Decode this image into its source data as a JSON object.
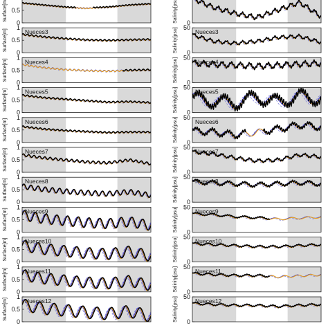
{
  "figure": {
    "left_ylabel": "Surface[m]",
    "right_ylabel": "Salinity[psu]",
    "colors": {
      "observed": "#000000",
      "model_a": "#e8a020",
      "model_b": "#2a2ad0",
      "model_c": "#8080d8",
      "shade": "#d9d9d9"
    }
  },
  "chart_data": [
    {
      "type": "line",
      "column": "surface",
      "ylim": [
        0,
        1
      ],
      "yticks": [
        "0",
        "0.5",
        "1"
      ],
      "panels": [
        {
          "label": "",
          "base": [
            0.78,
            0.7,
            0.62,
            0.58,
            0.62,
            0.7,
            0.75
          ],
          "amp": 0.02,
          "period": 40,
          "obs": "partial"
        },
        {
          "label": "Nueces3",
          "base": [
            0.72,
            0.62,
            0.55,
            0.5,
            0.48,
            0.5,
            0.52
          ],
          "amp": 0.03,
          "period": 30,
          "obs": "full"
        },
        {
          "label": "Nueces4",
          "base": [
            0.72,
            0.6,
            0.52,
            0.48,
            0.46,
            0.48,
            0.5
          ],
          "amp": 0.03,
          "period": 30,
          "obs": "late"
        },
        {
          "label": "Nueces5",
          "base": [
            0.68,
            0.58,
            0.52,
            0.46,
            0.4,
            0.42,
            0.38
          ],
          "amp": 0.03,
          "period": 30,
          "obs": "full"
        },
        {
          "label": "Nueces6",
          "base": [
            0.62,
            0.52,
            0.46,
            0.42,
            0.38,
            0.4,
            0.4
          ],
          "amp": 0.03,
          "period": 30,
          "obs": "full"
        },
        {
          "label": "Nueces7",
          "base": [
            0.68,
            0.56,
            0.48,
            0.4,
            0.36,
            0.48,
            0.32
          ],
          "amp": 0.05,
          "period": 24,
          "obs": "full"
        },
        {
          "label": "Nueces8",
          "base": [
            0.62,
            0.5,
            0.42,
            0.36,
            0.32,
            0.4,
            0.26
          ],
          "amp": 0.1,
          "period": 18,
          "obs": "full"
        },
        {
          "label": "Nueces9",
          "base": [
            0.66,
            0.52,
            0.44,
            0.36,
            0.32,
            0.4,
            0.24
          ],
          "amp": 0.2,
          "period": 12,
          "obs": "full"
        },
        {
          "label": "Nueces10",
          "base": [
            0.64,
            0.5,
            0.42,
            0.34,
            0.3,
            0.4,
            0.22
          ],
          "amp": 0.22,
          "period": 10,
          "obs": "full"
        },
        {
          "label": "Nueces11",
          "base": [
            0.66,
            0.52,
            0.44,
            0.36,
            0.32,
            0.42,
            0.24
          ],
          "amp": 0.22,
          "period": 10,
          "obs": "full"
        },
        {
          "label": "Nueces12",
          "base": [
            0.66,
            0.52,
            0.44,
            0.36,
            0.3,
            0.4,
            0.2
          ],
          "amp": 0.24,
          "period": 9,
          "obs": "full"
        }
      ]
    },
    {
      "type": "line",
      "column": "salinity",
      "ylim": [
        0,
        50
      ],
      "yticks": [
        "0",
        "50"
      ],
      "panels": [
        {
          "label": "",
          "base": [
            48,
            30,
            18,
            10,
            25,
            40,
            12
          ],
          "amp": 4,
          "period": 16,
          "obs": "full"
        },
        {
          "label": "Nueces3",
          "base": [
            35,
            22,
            18,
            22,
            30,
            32,
            20
          ],
          "amp": 3,
          "period": 16,
          "obs": "full"
        },
        {
          "label": "Nueces4",
          "base": [
            38,
            36,
            34,
            32,
            34,
            36,
            38
          ],
          "amp": 5,
          "period": 14,
          "obs": "full"
        },
        {
          "label": "Nueces5",
          "base": [
            28,
            22,
            18,
            30,
            20,
            32,
            26
          ],
          "amp": 12,
          "period": 5,
          "obs": "full"
        },
        {
          "label": "Nueces6",
          "base": [
            22,
            20,
            14,
            20,
            26,
            34,
            30
          ],
          "amp": 6,
          "period": 8,
          "obs": "partial"
        },
        {
          "label": "Nueces7",
          "base": [
            40,
            36,
            28,
            22,
            24,
            34,
            30
          ],
          "amp": 3,
          "period": 14,
          "obs": "full"
        },
        {
          "label": "Nueces8",
          "base": [
            40,
            38,
            36,
            34,
            36,
            38,
            36
          ],
          "amp": 4,
          "period": 8,
          "obs": "full"
        },
        {
          "label": "Nueces9",
          "base": [
            36,
            34,
            30,
            28,
            26,
            28,
            30
          ],
          "amp": 2,
          "period": 8,
          "obs": "early"
        },
        {
          "label": "Nueces10",
          "base": [
            36,
            34,
            32,
            30,
            30,
            32,
            34
          ],
          "amp": 2,
          "period": 10,
          "obs": "full"
        },
        {
          "label": "Nueces11",
          "base": [
            36,
            34,
            32,
            32,
            30,
            32,
            34
          ],
          "amp": 2,
          "period": 10,
          "obs": "early"
        },
        {
          "label": "Nueces12",
          "base": [
            36,
            34,
            32,
            32,
            30,
            32,
            34
          ],
          "amp": 2,
          "period": 10,
          "obs": "full"
        }
      ]
    }
  ]
}
